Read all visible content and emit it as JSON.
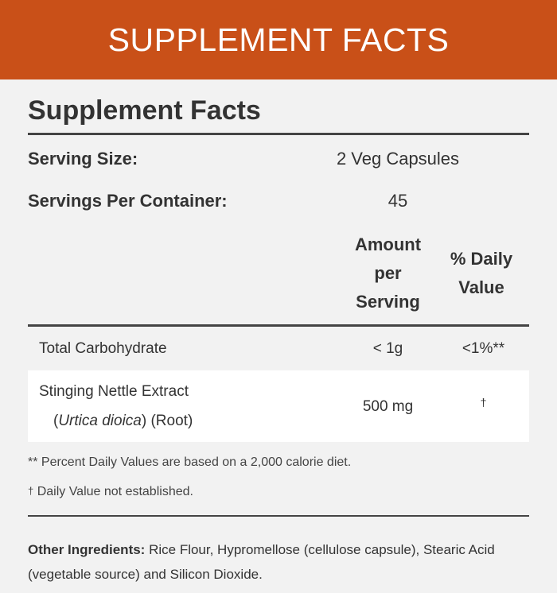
{
  "banner": {
    "title": "SUPPLEMENT FACTS"
  },
  "panel": {
    "title": "Supplement Facts",
    "serving_size_label": "Serving Size:",
    "serving_size_value": "2 Veg Capsules",
    "servings_label": "Servings Per Container:",
    "servings_value": "45",
    "col_amount": [
      "Amount",
      "per",
      "Serving"
    ],
    "col_daily": [
      "% Daily",
      "Value"
    ]
  },
  "nutrients": [
    {
      "name": "Total Carbohydrate",
      "amount": "< 1g",
      "dv": "<1%**"
    },
    {
      "name": "Stinging Nettle Extract",
      "name_sci": "Urtica dioica",
      "name_part": "(Root)",
      "amount": "500 mg",
      "dv": "†"
    }
  ],
  "footnotes": {
    "percent": "** Percent Daily Values are based on a 2,000 calorie diet.",
    "dagger_mark": "†",
    "dagger_text": "Daily Value not established."
  },
  "ingredients": {
    "label": "Other Ingredients:",
    "text": " Rice Flour, Hypromellose (cellulose capsule), Stearic Acid (vegetable source) and Silicon Dioxide."
  },
  "colors": {
    "banner": "#c95018",
    "background": "#f2f2f2",
    "text": "#333333"
  }
}
